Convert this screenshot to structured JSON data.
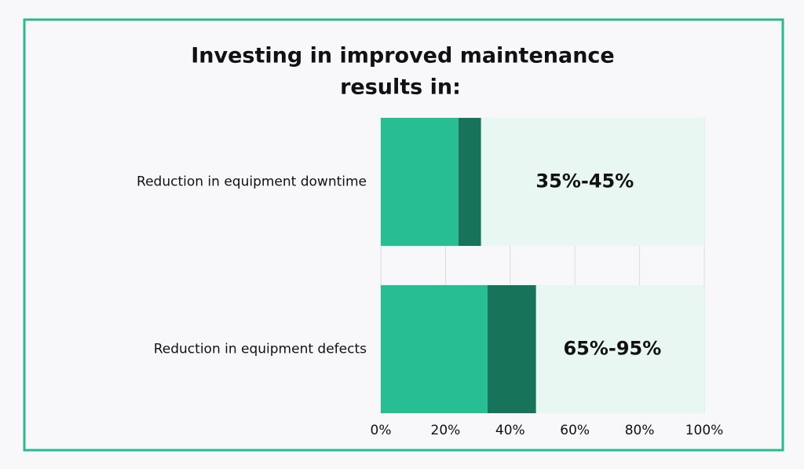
{
  "chart_data": {
    "type": "stacked-barh",
    "title": [
      "Investing in improved maintenance",
      "results in:"
    ],
    "categories": [
      "Reduction in equipment downtime",
      "Reduction in equipment defects"
    ],
    "series": [
      {
        "color": "#27be94",
        "values": [
          24,
          33
        ]
      },
      {
        "color": "#17735a",
        "values": [
          7,
          15
        ]
      },
      {
        "color": "#e8f7f2",
        "values": [
          69,
          52
        ]
      }
    ],
    "annotations": [
      "35%-45%",
      "65%-95%"
    ],
    "xlim": [
      0,
      100
    ],
    "xticks": [
      {
        "value": 0,
        "label": "0%"
      },
      {
        "value": 20,
        "label": "20%"
      },
      {
        "value": 40,
        "label": "40%"
      },
      {
        "value": 60,
        "label": "60%"
      },
      {
        "value": 80,
        "label": "80%"
      },
      {
        "value": 100,
        "label": "100%"
      }
    ],
    "grid": true
  }
}
